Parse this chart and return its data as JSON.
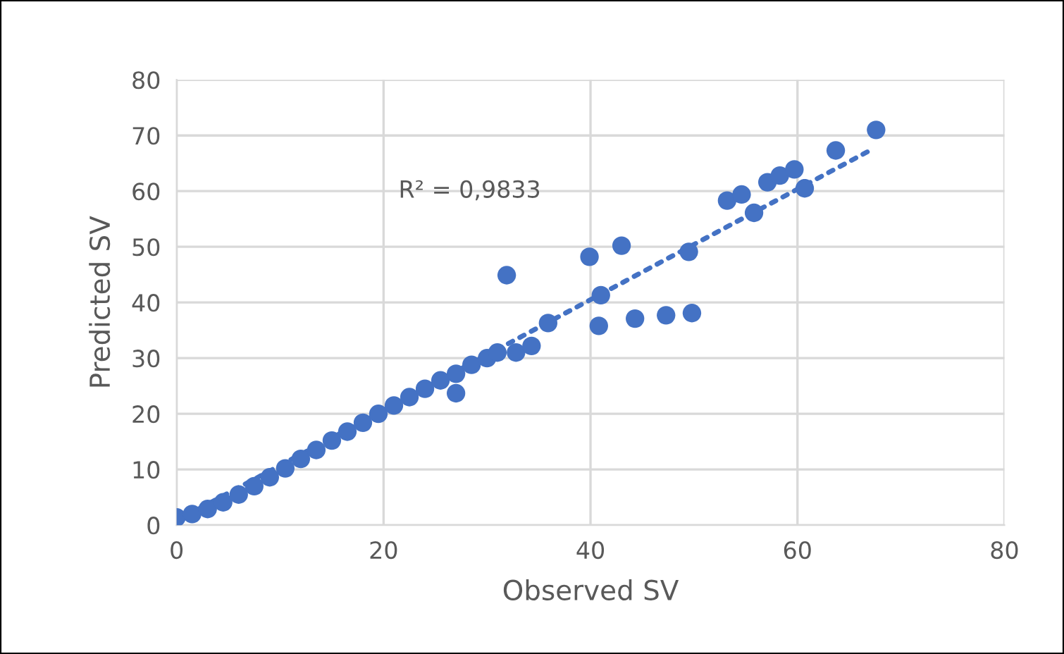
{
  "chart_data": {
    "type": "scatter",
    "xlabel": "Observed SV",
    "ylabel": "Predicted SV",
    "annotations": [
      "R² = 0,9833"
    ],
    "xlim": [
      0,
      80
    ],
    "ylim": [
      0,
      80
    ],
    "xticks": [
      0,
      20,
      40,
      60,
      80
    ],
    "yticks": [
      0,
      10,
      20,
      30,
      40,
      50,
      60,
      70,
      80
    ],
    "grid": true,
    "marker": "circle",
    "series": [
      {
        "color": "#4472c4",
        "x": [
          0,
          1.5,
          3,
          4.5,
          6,
          7.5,
          9,
          10.5,
          12,
          13.5,
          15,
          16.5,
          18,
          19.5,
          21,
          22.5,
          24,
          25.5,
          27,
          28.5,
          30,
          31,
          32.8,
          34.3,
          35.9,
          27,
          31.9,
          39.9,
          40.8,
          41,
          43,
          44.3,
          47.3,
          49.5,
          49.8,
          53.2,
          54.6,
          55.8,
          57.1,
          58.3,
          59.7,
          60.7,
          63.7,
          67.6
        ],
        "values": [
          1.4,
          2,
          2.9,
          4.1,
          5.5,
          7,
          8.6,
          10.2,
          11.9,
          13.5,
          15.2,
          16.8,
          18.4,
          20,
          21.5,
          23,
          24.5,
          26,
          27.2,
          28.8,
          30,
          31,
          31,
          32.2,
          36.3,
          23.7,
          44.9,
          48.2,
          35.8,
          41.3,
          50.2,
          37.1,
          37.7,
          49.1,
          38.1,
          58.3,
          59.4,
          56.1,
          61.6,
          62.8,
          63.9,
          60.5,
          67.3,
          71
        ]
      },
      {
        "color": "#4472c4",
        "type": "line",
        "line_style": "dotted",
        "marker": "none",
        "x": [
          0,
          67.2
        ],
        "values": [
          0.8,
          67.5
        ]
      }
    ]
  }
}
